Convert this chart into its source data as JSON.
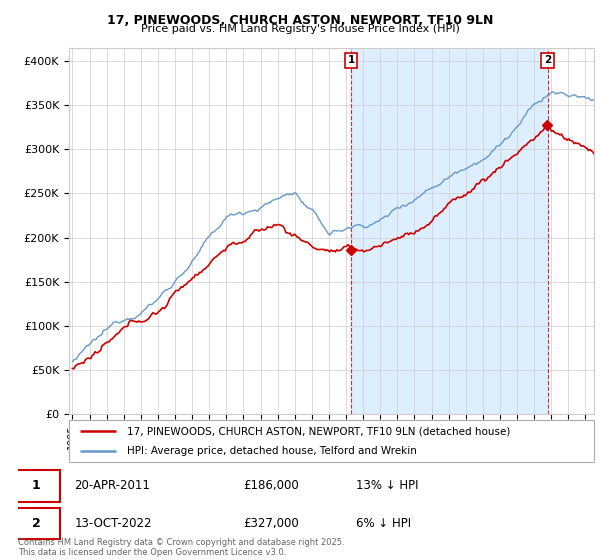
{
  "title": "17, PINEWOODS, CHURCH ASTON, NEWPORT, TF10 9LN",
  "subtitle": "Price paid vs. HM Land Registry's House Price Index (HPI)",
  "ylabel_ticks": [
    "£0",
    "£50K",
    "£100K",
    "£150K",
    "£200K",
    "£250K",
    "£300K",
    "£350K",
    "£400K"
  ],
  "ytick_values": [
    0,
    50000,
    100000,
    150000,
    200000,
    250000,
    300000,
    350000,
    400000
  ],
  "ylim": [
    0,
    415000
  ],
  "xlim_start": 1994.8,
  "xlim_end": 2025.5,
  "marker1_x": 2011.3,
  "marker2_x": 2022.79,
  "marker1_date": "20-APR-2011",
  "marker1_price": "£186,000",
  "marker1_hpi": "13% ↓ HPI",
  "marker2_date": "13-OCT-2022",
  "marker2_price": "£327,000",
  "marker2_hpi": "6% ↓ HPI",
  "line1_label": "17, PINEWOODS, CHURCH ASTON, NEWPORT, TF10 9LN (detached house)",
  "line2_label": "HPI: Average price, detached house, Telford and Wrekin",
  "line1_color": "#cc0000",
  "line2_color": "#6699cc",
  "shade_color": "#ddeeff",
  "marker1_price_val": 186000,
  "marker2_price_val": 327000,
  "footer": "Contains HM Land Registry data © Crown copyright and database right 2025.\nThis data is licensed under the Open Government Licence v3.0.",
  "background_color": "#ffffff",
  "grid_color": "#cccccc"
}
